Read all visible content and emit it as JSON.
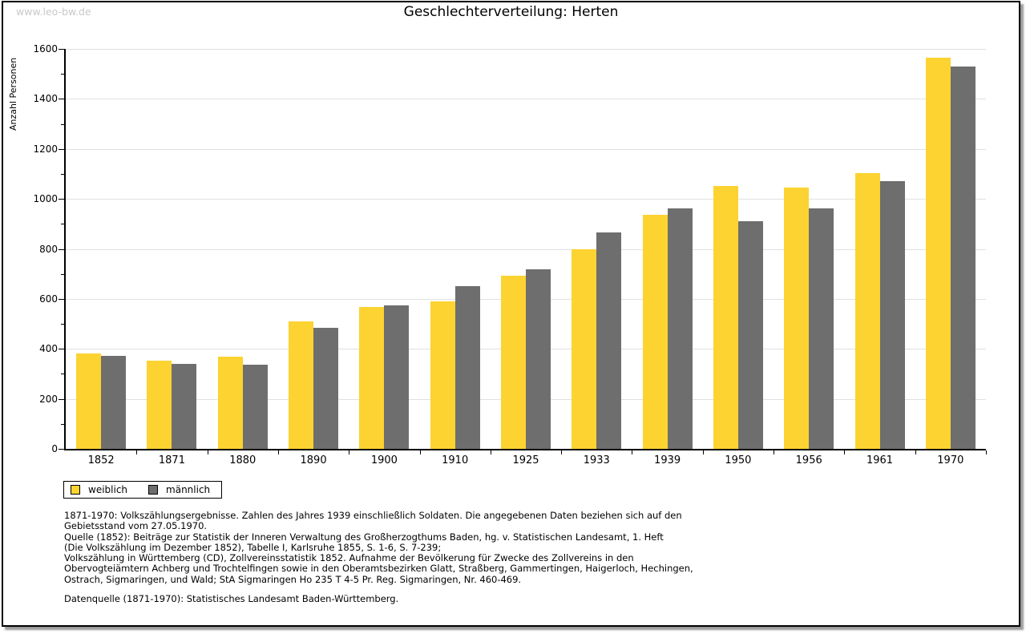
{
  "watermark": "www.leo-bw.de",
  "title": "Geschlechterverteilung: Herten",
  "chart_data": {
    "type": "bar",
    "title": "Geschlechterverteilung: Herten",
    "xlabel": "",
    "ylabel": "Anzahl Personen",
    "ylim": [
      0,
      1600
    ],
    "ytick_step": 200,
    "minor_tick_step": 100,
    "grid": true,
    "legend_position": "bottom-left",
    "categories": [
      "1852",
      "1871",
      "1880",
      "1890",
      "1900",
      "1910",
      "1925",
      "1933",
      "1939",
      "1950",
      "1956",
      "1961",
      "1970"
    ],
    "series": [
      {
        "name": "weiblich",
        "color": "#FCD330",
        "values": [
          380,
          352,
          368,
          509,
          566,
          591,
          693,
          799,
          936,
          1052,
          1046,
          1103,
          1565
        ]
      },
      {
        "name": "männlich",
        "color": "#6E6E6E",
        "values": [
          372,
          340,
          337,
          483,
          574,
          652,
          718,
          866,
          963,
          911,
          963,
          1071,
          1528
        ]
      }
    ]
  },
  "legend": {
    "items": [
      {
        "label": "weiblich",
        "color": "#FCD330"
      },
      {
        "label": "männlich",
        "color": "#6E6E6E"
      }
    ]
  },
  "notes": {
    "lines": [
      "1871-1970: Volkszählungsergebnisse. Zahlen des Jahres 1939 einschließlich Soldaten. Die angegebenen Daten beziehen sich auf den",
      "Gebietsstand vom 27.05.1970.",
      "Quelle (1852): Beiträge zur Statistik der Inneren Verwaltung des Großherzogthums Baden, hg. v. Statistischen Landesamt, 1. Heft",
      "(Die Volkszählung im Dezember 1852), Tabelle I, Karlsruhe 1855, S. 1-6, S. 7-239;",
      "Volkszählung in Württemberg (CD), Zollvereinsstatistik 1852. Aufnahme der Bevölkerung für Zwecke des Zollvereins in den",
      "Obervogteiämtern Achberg und Trochtelfingen sowie in den Oberamtsbezirken Glatt, Straßberg, Gammertingen, Haigerloch, Hechingen,",
      "Ostrach, Sigmaringen, und Wald; StA Sigmaringen Ho 235 T 4-5 Pr. Reg. Sigmaringen, Nr. 460-469."
    ],
    "datasource": "Datenquelle (1871-1970): Statistisches Landesamt Baden-Württemberg."
  },
  "colors": {
    "weiblich": "#FCD330",
    "maennlich": "#6E6E6E",
    "gridline": "#E0E0E0",
    "watermark_text": "#C8C8C8",
    "axis": "#000000"
  }
}
